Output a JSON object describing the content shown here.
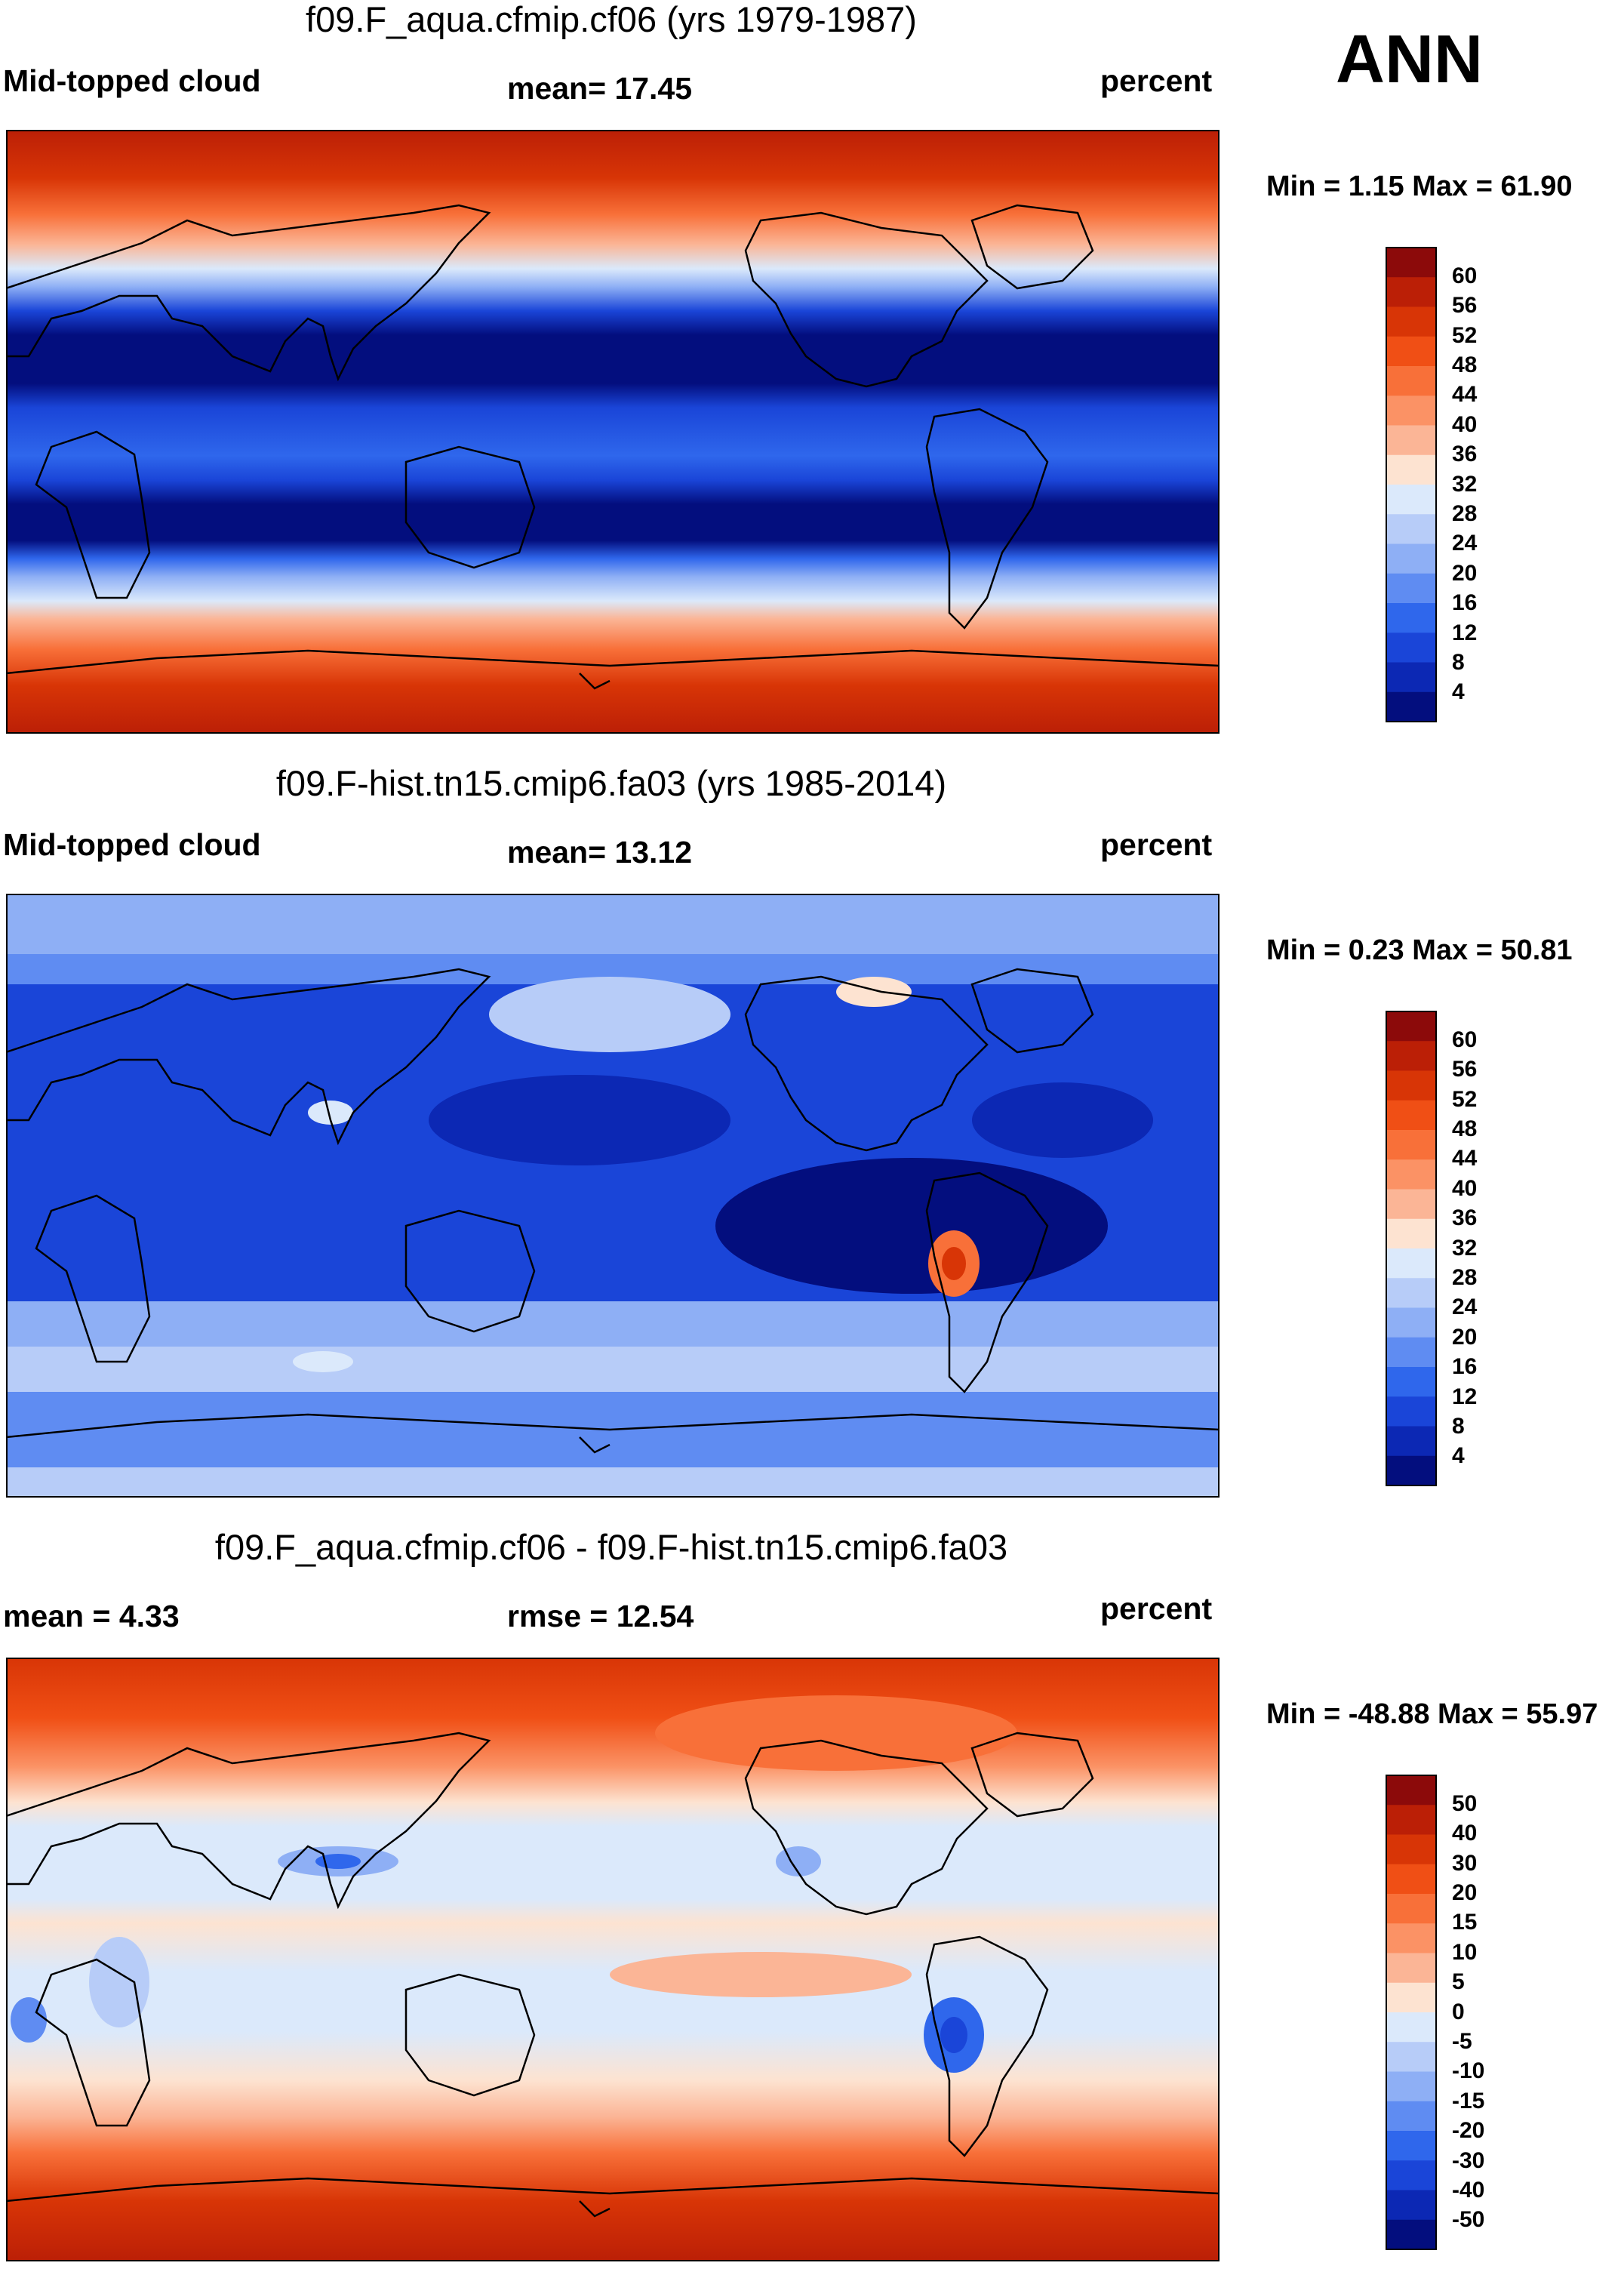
{
  "season": "ANN",
  "units": "percent",
  "variable": "Mid-topped cloud",
  "panels": [
    {
      "id": "test",
      "title": "f09.F_aqua.cfmip.cf06 (yrs 1979-1987)",
      "left_label": "Mid-topped cloud",
      "stat_text": "mean=  17.45",
      "units": "percent",
      "minmax_text": "Min =   1.15 Max =  61.90",
      "colorbar_ticks": [
        "60",
        "56",
        "52",
        "48",
        "44",
        "40",
        "36",
        "32",
        "28",
        "24",
        "20",
        "16",
        "12",
        "8",
        "4"
      ],
      "colorbar_colors": [
        "#8c0a0a",
        "#bb1f06",
        "#d83506",
        "#f04f15",
        "#f87039",
        "#fb9265",
        "#fbb596",
        "#fde3d1",
        "#dbe9fb",
        "#b7ccf8",
        "#8eaff5",
        "#5f8cf2",
        "#2f67ec",
        "#1a45d8",
        "#0c28b4",
        "#030e7e"
      ]
    },
    {
      "id": "control",
      "title": "f09.F-hist.tn15.cmip6.fa03 (yrs 1985-2014)",
      "left_label": "Mid-topped cloud",
      "stat_text": "mean=  13.12",
      "units": "percent",
      "minmax_text": "Min =   0.23 Max =  50.81",
      "colorbar_ticks": [
        "60",
        "56",
        "52",
        "48",
        "44",
        "40",
        "36",
        "32",
        "28",
        "24",
        "20",
        "16",
        "12",
        "8",
        "4"
      ],
      "colorbar_colors": [
        "#8c0a0a",
        "#bb1f06",
        "#d83506",
        "#f04f15",
        "#f87039",
        "#fb9265",
        "#fbb596",
        "#fde3d1",
        "#dbe9fb",
        "#b7ccf8",
        "#8eaff5",
        "#5f8cf2",
        "#2f67ec",
        "#1a45d8",
        "#0c28b4",
        "#030e7e"
      ]
    },
    {
      "id": "difference",
      "title": "f09.F_aqua.cfmip.cf06 - f09.F-hist.tn15.cmip6.fa03",
      "left_label": "mean =    4.33",
      "stat_text": "rmse =  12.54",
      "units": "percent",
      "minmax_text": "Min = -48.88 Max =  55.97",
      "colorbar_ticks": [
        "50",
        "40",
        "30",
        "20",
        "15",
        "10",
        "5",
        "0",
        "-5",
        "-10",
        "-15",
        "-20",
        "-30",
        "-40",
        "-50"
      ],
      "colorbar_colors": [
        "#8c0a0a",
        "#bb1f06",
        "#d83506",
        "#f04f15",
        "#f87039",
        "#fb9265",
        "#fbb596",
        "#fde3d1",
        "#dbe9fb",
        "#b7ccf8",
        "#8eaff5",
        "#5f8cf2",
        "#2f67ec",
        "#1a45d8",
        "#0c28b4",
        "#030e7e"
      ]
    }
  ]
}
